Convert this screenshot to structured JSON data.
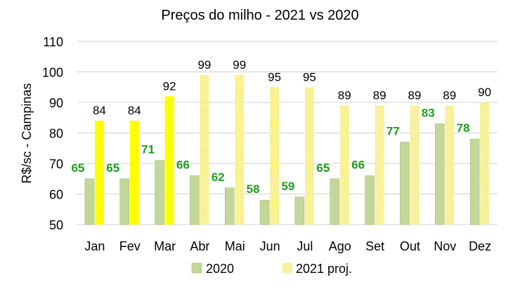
{
  "chart_data": {
    "type": "bar",
    "title": "Preços do milho - 2021 vs 2020",
    "xlabel": "",
    "ylabel": "R$/sc - Campinas",
    "ylim": [
      50,
      110
    ],
    "yticks": [
      50,
      60,
      70,
      80,
      90,
      100,
      110
    ],
    "grid": true,
    "legend_position": "bottom",
    "categories": [
      "Jan",
      "Fev",
      "Mar",
      "Abr",
      "Mai",
      "Jun",
      "Jul",
      "Ago",
      "Set",
      "Out",
      "Nov",
      "Dez"
    ],
    "series": [
      {
        "name": "2020",
        "color": "#c4d79b",
        "label_color": "#1e9e1e",
        "values": [
          65,
          65,
          71,
          66,
          62,
          58,
          59,
          65,
          66,
          77,
          83,
          78
        ]
      },
      {
        "name": "2021 proj.",
        "color": "#f8ef86",
        "actual_color": "#ffff00",
        "actual_months": [
          "Jan",
          "Fev",
          "Mar"
        ],
        "values": [
          84,
          84,
          92,
          99,
          99,
          95,
          95,
          89,
          89,
          89,
          89,
          90
        ]
      }
    ]
  }
}
